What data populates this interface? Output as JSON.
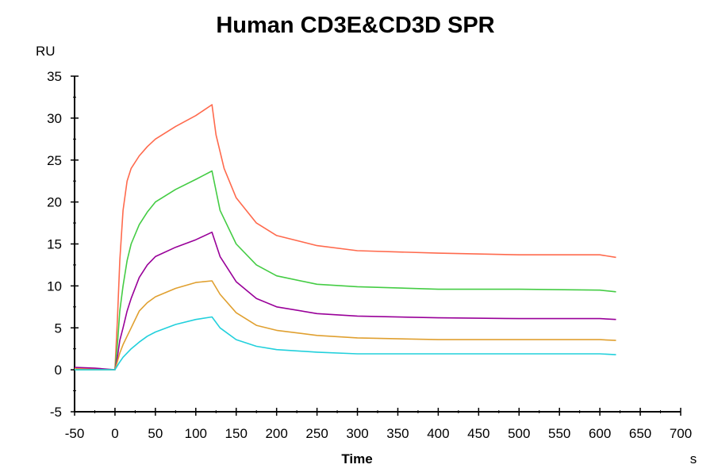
{
  "chart_data": {
    "type": "line",
    "title": "Human CD3E&CD3D SPR",
    "xlabel": "Time",
    "xunit": "s",
    "yunit": "RU",
    "xlim": [
      -50,
      700
    ],
    "ylim": [
      -5,
      35
    ],
    "xticks": [
      -50,
      0,
      50,
      100,
      150,
      200,
      250,
      300,
      350,
      400,
      450,
      500,
      550,
      600,
      650,
      700
    ],
    "yticks": [
      -5,
      0,
      5,
      10,
      15,
      20,
      25,
      30,
      35
    ],
    "grid": false,
    "series": [
      {
        "color": "#ff6a4d",
        "x": [
          -50,
          -25,
          0,
          3,
          6,
          10,
          15,
          20,
          30,
          40,
          50,
          75,
          100,
          120,
          125,
          135,
          150,
          175,
          200,
          250,
          300,
          400,
          500,
          600,
          620
        ],
        "y": [
          0.2,
          0.1,
          0,
          6,
          13,
          19,
          22.5,
          24,
          25.5,
          26.6,
          27.5,
          29,
          30.3,
          31.6,
          28,
          24,
          20.5,
          17.5,
          16,
          14.8,
          14.2,
          13.9,
          13.7,
          13.7,
          13.4
        ]
      },
      {
        "color": "#44cc44",
        "x": [
          -50,
          -25,
          0,
          3,
          6,
          10,
          15,
          20,
          30,
          40,
          50,
          75,
          100,
          120,
          130,
          150,
          175,
          200,
          250,
          300,
          400,
          500,
          600,
          620
        ],
        "y": [
          0,
          0,
          0,
          3,
          7,
          10,
          13,
          15,
          17.3,
          18.8,
          20,
          21.5,
          22.7,
          23.7,
          19,
          15,
          12.5,
          11.2,
          10.2,
          9.9,
          9.6,
          9.6,
          9.5,
          9.3
        ]
      },
      {
        "color": "#990099",
        "x": [
          -50,
          -25,
          0,
          3,
          6,
          10,
          15,
          20,
          30,
          40,
          50,
          75,
          100,
          120,
          130,
          150,
          175,
          200,
          250,
          300,
          400,
          500,
          600,
          620
        ],
        "y": [
          0.3,
          0.2,
          0,
          1.5,
          3.5,
          5,
          7,
          8.5,
          11,
          12.5,
          13.5,
          14.6,
          15.5,
          16.4,
          13.5,
          10.5,
          8.5,
          7.5,
          6.7,
          6.4,
          6.2,
          6.1,
          6.1,
          6
        ]
      },
      {
        "color": "#e0a030",
        "x": [
          -50,
          -25,
          0,
          3,
          6,
          10,
          15,
          20,
          30,
          40,
          50,
          75,
          100,
          120,
          130,
          150,
          175,
          200,
          250,
          300,
          400,
          500,
          600,
          620
        ],
        "y": [
          0.1,
          0,
          0,
          1,
          2,
          3,
          4,
          5,
          7,
          8,
          8.7,
          9.7,
          10.4,
          10.6,
          9,
          6.8,
          5.3,
          4.7,
          4.1,
          3.8,
          3.6,
          3.6,
          3.6,
          3.5
        ]
      },
      {
        "color": "#22d0dc",
        "x": [
          -50,
          -25,
          0,
          5,
          10,
          20,
          30,
          40,
          50,
          75,
          100,
          120,
          130,
          150,
          175,
          200,
          250,
          300,
          400,
          500,
          600,
          620
        ],
        "y": [
          0,
          0,
          0,
          0.8,
          1.5,
          2.5,
          3.3,
          4,
          4.5,
          5.4,
          6,
          6.3,
          5,
          3.6,
          2.8,
          2.4,
          2.1,
          1.9,
          1.9,
          1.9,
          1.9,
          1.8
        ]
      }
    ]
  }
}
